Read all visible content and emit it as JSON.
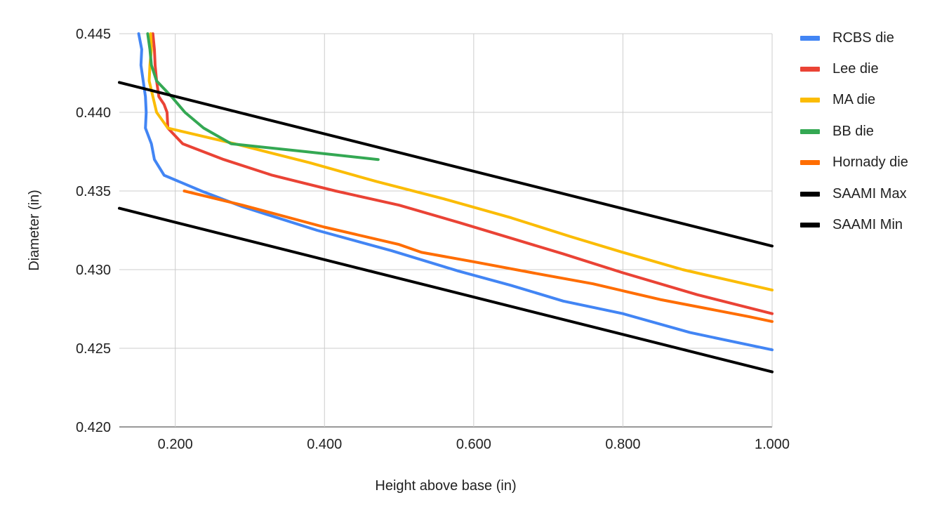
{
  "chart_data": {
    "type": "line",
    "title": "",
    "xlabel": "Height above base (in)",
    "ylabel": "Diameter (in)",
    "xlim": [
      0.125,
      1.0
    ],
    "ylim": [
      0.42,
      0.445
    ],
    "x_ticks": [
      "0.200",
      "0.400",
      "0.600",
      "0.800",
      "1.000"
    ],
    "x_tick_values": [
      0.2,
      0.4,
      0.6,
      0.8,
      1.0
    ],
    "y_ticks": [
      "0.420",
      "0.425",
      "0.430",
      "0.435",
      "0.440",
      "0.445"
    ],
    "y_tick_values": [
      0.42,
      0.425,
      0.43,
      0.435,
      0.44,
      0.445
    ],
    "grid": true,
    "legend_position": "right",
    "series": [
      {
        "name": "RCBS die",
        "color": "#4285F4",
        "points": [
          [
            0.151,
            0.445
          ],
          [
            0.155,
            0.444
          ],
          [
            0.154,
            0.443
          ],
          [
            0.157,
            0.442
          ],
          [
            0.16,
            0.441
          ],
          [
            0.161,
            0.44
          ],
          [
            0.16,
            0.439
          ],
          [
            0.168,
            0.438
          ],
          [
            0.172,
            0.437
          ],
          [
            0.185,
            0.436
          ],
          [
            0.235,
            0.435
          ],
          [
            0.29,
            0.434
          ],
          [
            0.39,
            0.4325
          ],
          [
            0.49,
            0.4312
          ],
          [
            0.58,
            0.4299
          ],
          [
            0.65,
            0.429
          ],
          [
            0.72,
            0.428
          ],
          [
            0.8,
            0.4272
          ],
          [
            0.89,
            0.426
          ],
          [
            1.0,
            0.4249
          ]
        ]
      },
      {
        "name": "Lee die",
        "color": "#EA4335",
        "points": [
          [
            0.17,
            0.445
          ],
          [
            0.172,
            0.444
          ],
          [
            0.173,
            0.443
          ],
          [
            0.175,
            0.442
          ],
          [
            0.178,
            0.441
          ],
          [
            0.185,
            0.4405
          ],
          [
            0.189,
            0.44
          ],
          [
            0.19,
            0.439
          ],
          [
            0.21,
            0.438
          ],
          [
            0.265,
            0.437
          ],
          [
            0.33,
            0.436
          ],
          [
            0.415,
            0.435
          ],
          [
            0.5,
            0.4341
          ],
          [
            0.58,
            0.433
          ],
          [
            0.65,
            0.432
          ],
          [
            0.72,
            0.431
          ],
          [
            0.8,
            0.4298
          ],
          [
            0.9,
            0.4284
          ],
          [
            1.0,
            0.4272
          ]
        ]
      },
      {
        "name": "MA die",
        "color": "#FBBC04",
        "points": [
          [
            0.167,
            0.445
          ],
          [
            0.168,
            0.444
          ],
          [
            0.166,
            0.443
          ],
          [
            0.165,
            0.442
          ],
          [
            0.17,
            0.441
          ],
          [
            0.175,
            0.44
          ],
          [
            0.19,
            0.439
          ],
          [
            0.28,
            0.438
          ],
          [
            0.38,
            0.4368
          ],
          [
            0.47,
            0.4356
          ],
          [
            0.56,
            0.4345
          ],
          [
            0.65,
            0.4333
          ],
          [
            0.73,
            0.4321
          ],
          [
            0.8,
            0.4311
          ],
          [
            0.88,
            0.43
          ],
          [
            1.0,
            0.4287
          ]
        ]
      },
      {
        "name": "BB die",
        "color": "#34A853",
        "points": [
          [
            0.163,
            0.445
          ],
          [
            0.166,
            0.444
          ],
          [
            0.168,
            0.443
          ],
          [
            0.175,
            0.442
          ],
          [
            0.195,
            0.441
          ],
          [
            0.213,
            0.44
          ],
          [
            0.238,
            0.439
          ],
          [
            0.275,
            0.438
          ],
          [
            0.375,
            0.4375
          ],
          [
            0.472,
            0.437
          ]
        ]
      },
      {
        "name": "Hornady die",
        "color": "#FF6D01",
        "points": [
          [
            0.212,
            0.435
          ],
          [
            0.29,
            0.4341
          ],
          [
            0.4,
            0.4327
          ],
          [
            0.5,
            0.4316
          ],
          [
            0.53,
            0.4311
          ],
          [
            0.6,
            0.4305
          ],
          [
            0.69,
            0.4297
          ],
          [
            0.76,
            0.4291
          ],
          [
            0.85,
            0.4281
          ],
          [
            0.97,
            0.427
          ],
          [
            1.0,
            0.4267
          ]
        ]
      },
      {
        "name": "SAAMI Max",
        "color": "#000000",
        "points": [
          [
            0.125,
            0.4419
          ],
          [
            1.0,
            0.4315
          ]
        ]
      },
      {
        "name": "SAAMI Min",
        "color": "#000000",
        "points": [
          [
            0.125,
            0.4339
          ],
          [
            1.0,
            0.4235
          ]
        ]
      }
    ]
  }
}
